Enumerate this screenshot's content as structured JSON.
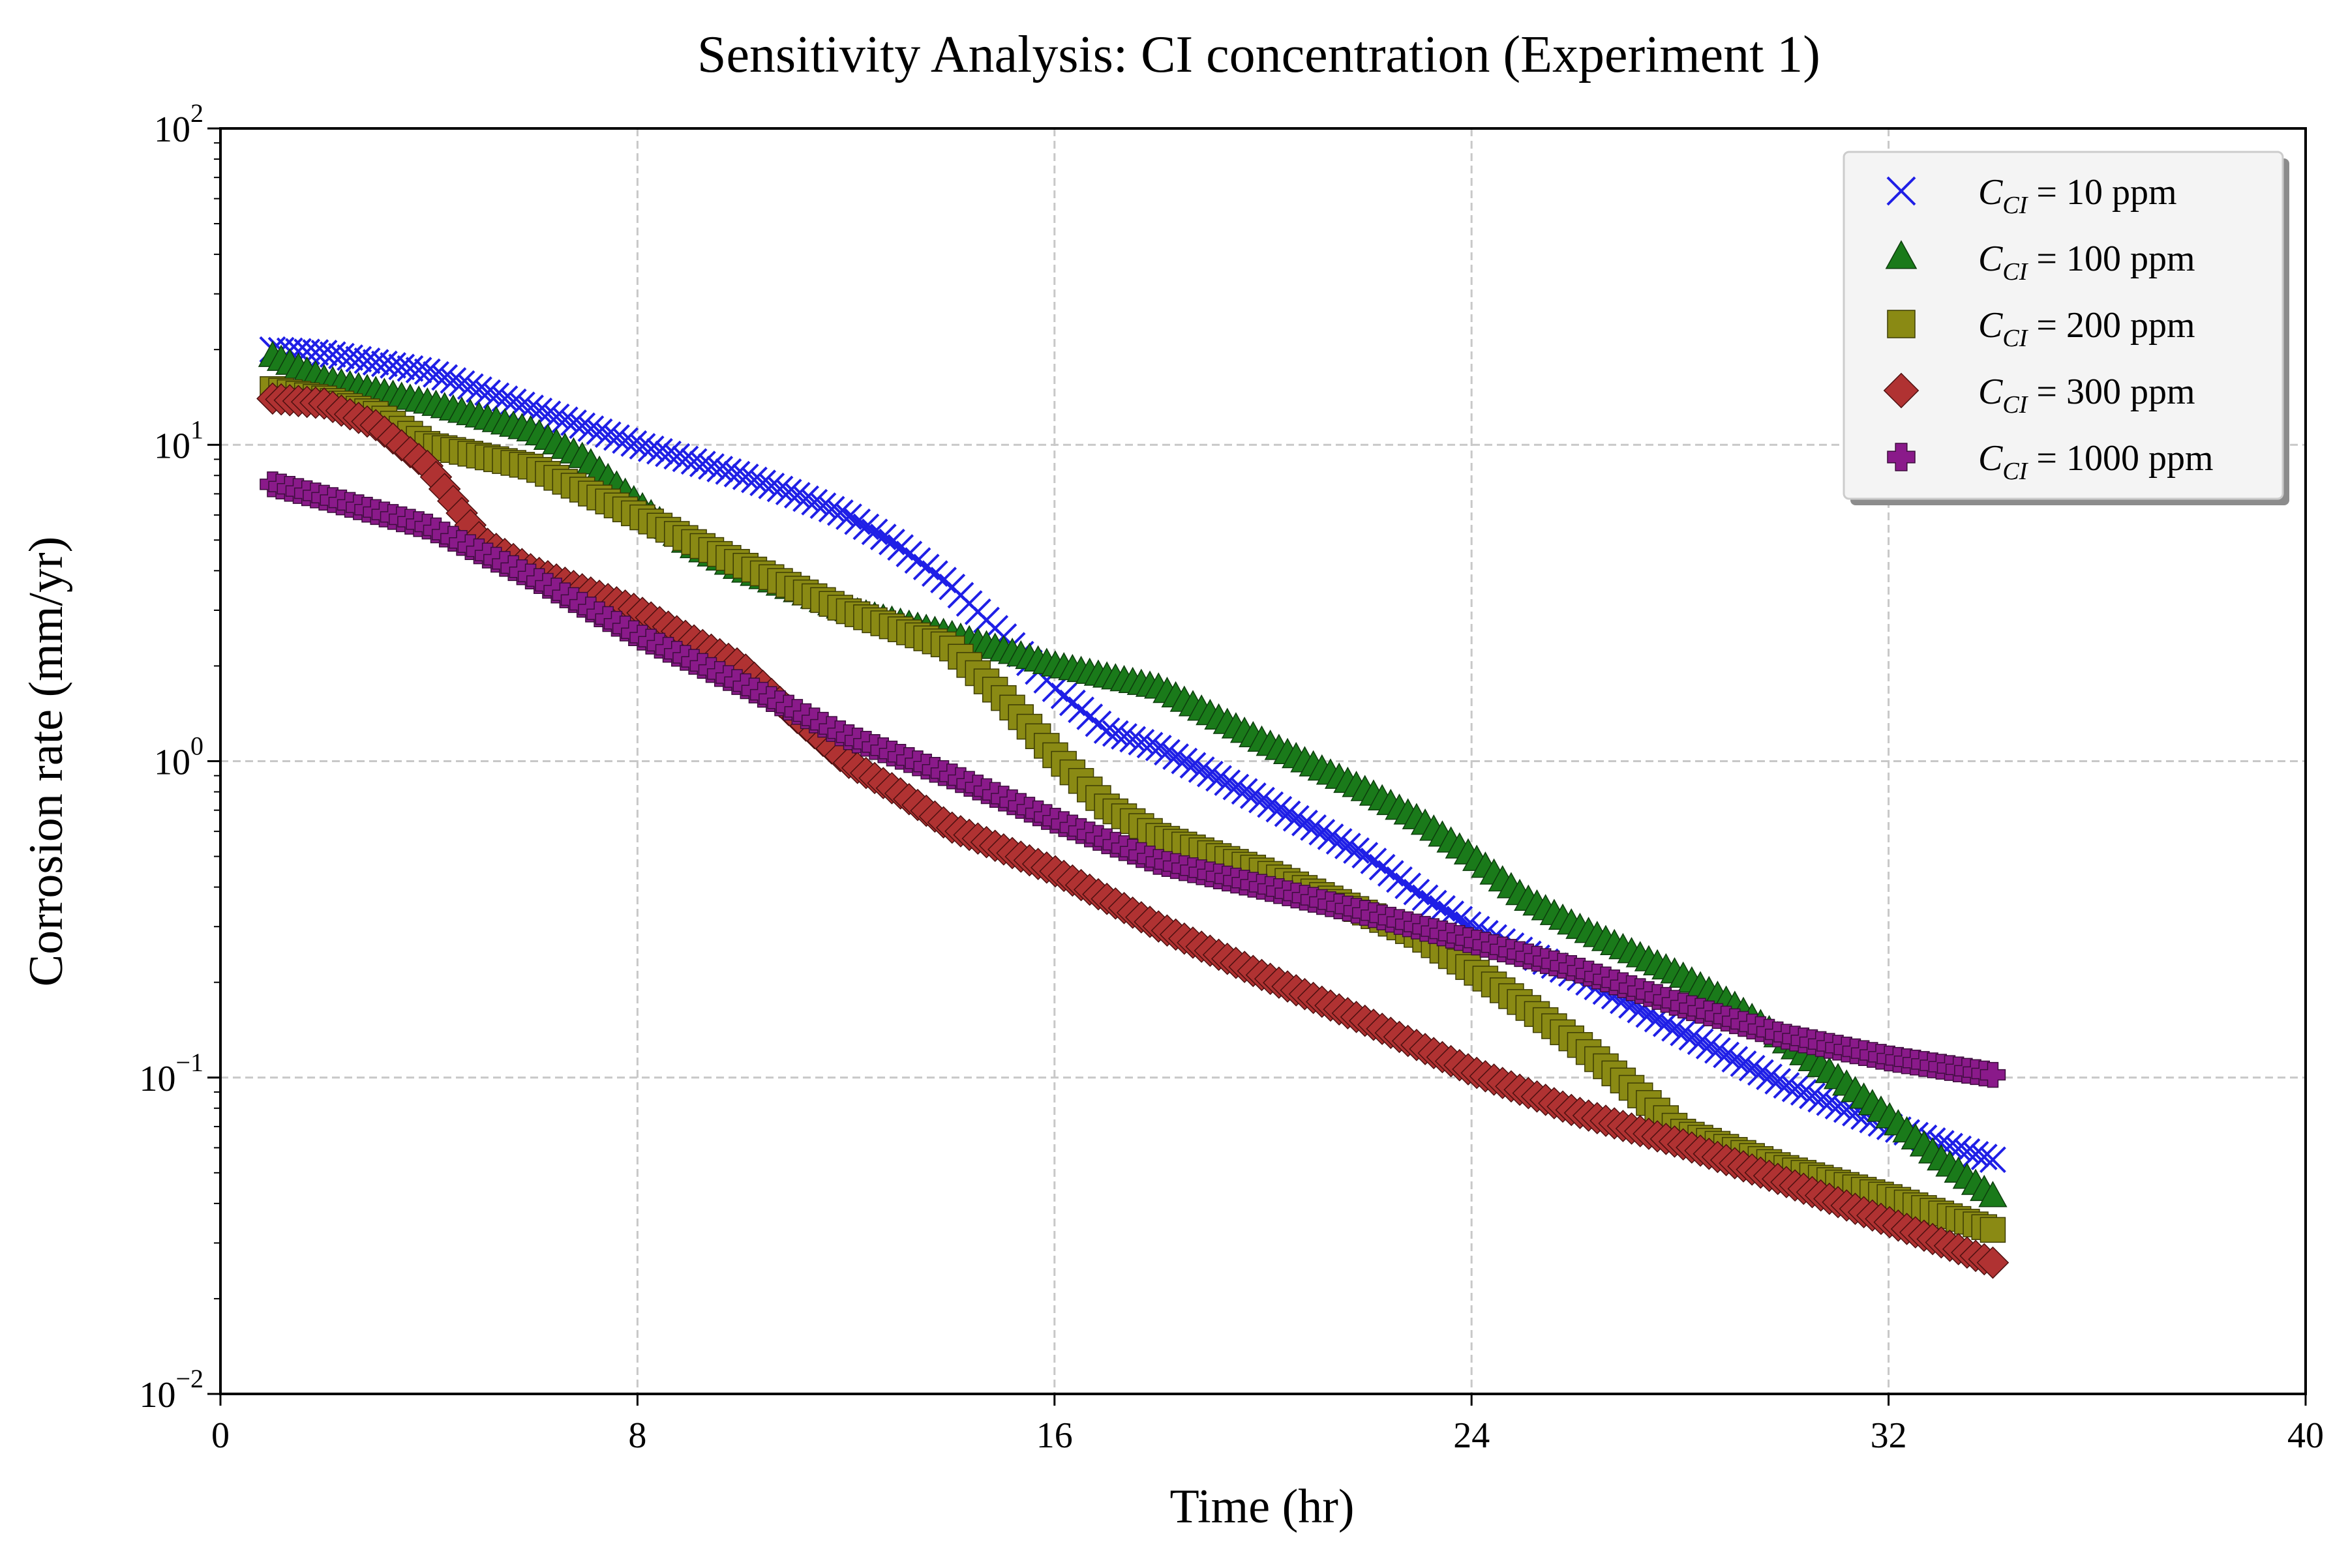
{
  "chart_data": {
    "type": "scatter",
    "title": "Sensitivity Analysis: CI concentration (Experiment 1)",
    "xlabel": "Time (hr)",
    "ylabel": "Corrosion rate (mm/yr)",
    "xlim": [
      0,
      40
    ],
    "ylim": [
      0.01,
      100
    ],
    "yscale": "log",
    "xticks": [
      0,
      8,
      16,
      24,
      32,
      40
    ],
    "xtick_labels": [
      "0",
      "8",
      "16",
      "24",
      "32",
      "40"
    ],
    "yticks": [
      0.01,
      0.1,
      1,
      10,
      100
    ],
    "ytick_labels": [
      {
        "base": "10",
        "exp": "−2"
      },
      {
        "base": "10",
        "exp": "−1"
      },
      {
        "base": "10",
        "exp": "0"
      },
      {
        "base": "10",
        "exp": "1"
      },
      {
        "base": "10",
        "exp": "2"
      }
    ],
    "grid": true,
    "legend_position": "top-right",
    "series": [
      {
        "legend_prefix": "C",
        "legend_subscript": "CI",
        "legend_suffix": " = 10 ppm",
        "marker": "x",
        "color": "#1f1fe6",
        "x": [
          1,
          2,
          4,
          6,
          8,
          10,
          11,
          12,
          13,
          14,
          15,
          16,
          17,
          18,
          20,
          22,
          23,
          24,
          25,
          26,
          28,
          30,
          32,
          34
        ],
        "y": [
          20,
          19.5,
          17,
          13,
          10,
          8,
          7,
          6,
          4.8,
          3.6,
          2.5,
          1.7,
          1.25,
          1.1,
          0.75,
          0.5,
          0.38,
          0.3,
          0.25,
          0.21,
          0.14,
          0.095,
          0.07,
          0.055
        ]
      },
      {
        "legend_prefix": "C",
        "legend_subscript": "CI",
        "legend_suffix": " = 100 ppm",
        "marker": "triangle",
        "color": "#1a7a1a",
        "x": [
          1,
          2,
          4,
          6,
          7,
          8,
          9,
          10,
          12,
          14,
          16,
          18,
          20,
          22,
          23,
          24,
          25,
          26,
          28,
          29,
          30,
          31,
          32,
          33,
          34
        ],
        "y": [
          19,
          16,
          13.5,
          11,
          9,
          6.5,
          4.8,
          4,
          3,
          2.5,
          2,
          1.7,
          1.15,
          0.8,
          0.65,
          0.5,
          0.37,
          0.3,
          0.21,
          0.17,
          0.13,
          0.1,
          0.075,
          0.055,
          0.042
        ]
      },
      {
        "legend_prefix": "C",
        "legend_subscript": "CI",
        "legend_suffix": " = 200 ppm",
        "marker": "square",
        "color": "#8a8a14",
        "x": [
          1,
          2,
          3,
          4,
          6,
          8,
          9,
          10,
          12,
          14,
          15,
          16,
          17,
          18,
          20,
          22,
          23,
          24,
          25,
          26,
          27,
          28,
          30,
          32,
          34
        ],
        "y": [
          15,
          14,
          12.5,
          10,
          8.5,
          6,
          5,
          4.2,
          3,
          2.3,
          1.6,
          1.05,
          0.72,
          0.58,
          0.45,
          0.33,
          0.28,
          0.22,
          0.17,
          0.13,
          0.095,
          0.068,
          0.052,
          0.042,
          0.033
        ]
      },
      {
        "legend_prefix": "C",
        "legend_subscript": "CI",
        "legend_suffix": " = 300 ppm",
        "marker": "diamond",
        "color": "#b03232",
        "x": [
          1,
          2,
          3,
          4,
          5,
          6,
          8,
          10,
          11,
          12,
          13,
          14,
          16,
          18,
          20,
          22,
          24,
          26,
          28,
          30,
          32,
          34
        ],
        "y": [
          14,
          13.5,
          11.5,
          8.5,
          5,
          4,
          3,
          2,
          1.4,
          1.0,
          0.8,
          0.62,
          0.45,
          0.3,
          0.21,
          0.15,
          0.105,
          0.078,
          0.062,
          0.047,
          0.035,
          0.026
        ]
      },
      {
        "legend_prefix": "C",
        "legend_subscript": "CI",
        "legend_suffix": " = 1000 ppm",
        "marker": "plus",
        "color": "#8a1a8a",
        "x": [
          1,
          2,
          4,
          6,
          8,
          10,
          12,
          14,
          16,
          18,
          20,
          22,
          24,
          26,
          28,
          30,
          32,
          34
        ],
        "y": [
          7.5,
          6.8,
          5.5,
          3.8,
          2.5,
          1.75,
          1.2,
          0.9,
          0.65,
          0.48,
          0.4,
          0.33,
          0.27,
          0.22,
          0.17,
          0.135,
          0.115,
          0.102
        ]
      }
    ]
  }
}
